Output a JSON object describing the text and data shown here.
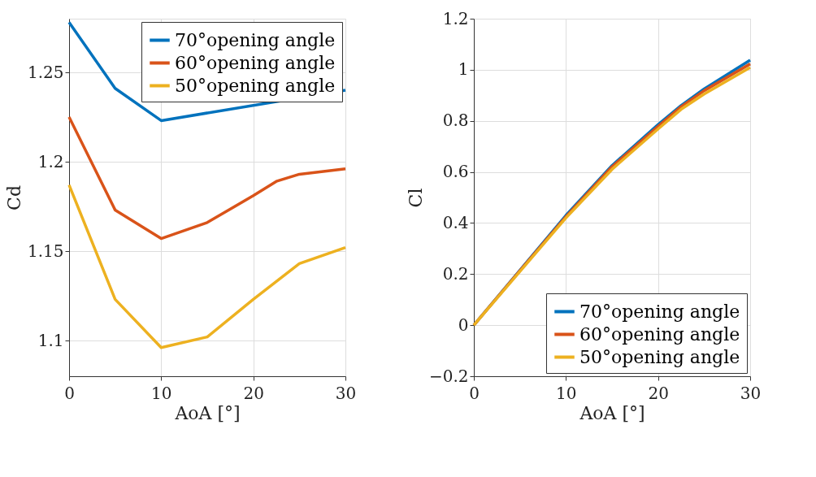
{
  "chart_data": [
    {
      "type": "line",
      "xlabel": "AoA [°]",
      "ylabel": "Cd",
      "x": [
        0,
        5,
        10,
        15,
        20,
        22.5,
        25,
        30
      ],
      "xlim": [
        0,
        30
      ],
      "xticks": [
        0,
        10,
        20,
        30
      ],
      "ylim": [
        1.08,
        1.28
      ],
      "yticks": [
        1.1,
        1.15,
        1.2,
        1.25
      ],
      "grid": true,
      "legend": "top right",
      "line_style": "solid",
      "marker": "none",
      "series": [
        {
          "name": "70°opening angle",
          "color": "#0072bd",
          "x": [
            0,
            5,
            10,
            30
          ],
          "values": [
            1.278,
            1.241,
            1.223,
            1.24
          ]
        },
        {
          "name": "60°opening angle",
          "color": "#d95319",
          "values": [
            1.225,
            1.173,
            1.157,
            1.166,
            1.181,
            1.189,
            1.193,
            1.196
          ]
        },
        {
          "name": "50°opening angle",
          "color": "#edb120",
          "values": [
            1.187,
            1.123,
            1.096,
            1.102,
            1.123,
            1.133,
            1.143,
            1.152
          ]
        }
      ]
    },
    {
      "type": "line",
      "xlabel": "AoA [°]",
      "ylabel": "Cl",
      "x": [
        0,
        5,
        10,
        15,
        20,
        22.5,
        25,
        30
      ],
      "xlim": [
        0,
        30
      ],
      "xticks": [
        0,
        10,
        20,
        30
      ],
      "ylim": [
        -0.2,
        1.2
      ],
      "yticks": [
        {
          "value": -0.2,
          "label": "−0.2"
        },
        0,
        0.2,
        0.4,
        0.6,
        0.8,
        1,
        1.2
      ],
      "grid": true,
      "legend": "bottom right",
      "line_style": "solid",
      "marker": "none",
      "series": [
        {
          "name": "70°opening angle",
          "color": "#0072bd",
          "values": [
            0,
            0.215,
            0.43,
            0.625,
            0.785,
            0.86,
            0.925,
            1.038
          ]
        },
        {
          "name": "60°opening angle",
          "color": "#d95319",
          "values": [
            0,
            0.213,
            0.425,
            0.62,
            0.778,
            0.855,
            0.918,
            1.023
          ]
        },
        {
          "name": "50°opening angle",
          "color": "#edb120",
          "values": [
            0,
            0.21,
            0.42,
            0.61,
            0.768,
            0.845,
            0.905,
            1.009
          ]
        }
      ]
    }
  ]
}
